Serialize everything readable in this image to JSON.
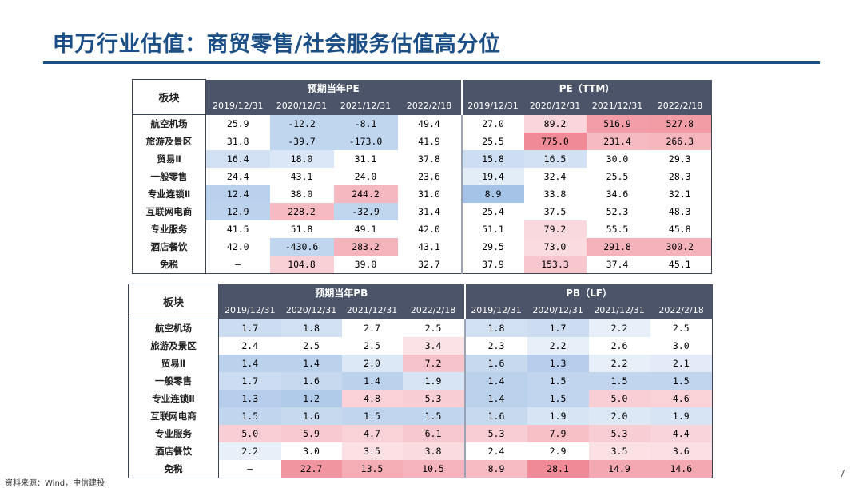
{
  "title": "申万行业估值：商贸零售/社会服务估值高分位",
  "source": "资料来源：Wind，中信建投",
  "page_number": "7",
  "colors": {
    "title": "#1c4f86",
    "header_bg": "#4b5468",
    "high": "#f08a96",
    "low": "#6f9fd6"
  },
  "pe_table": {
    "corner": "板块",
    "group_left": "预期当年PE",
    "group_right": "PE（TTM）",
    "dates": [
      "2019/12/31",
      "2020/12/31",
      "2021/12/31",
      "2022/2/18",
      "2019/12/31",
      "2020/12/31",
      "2021/12/31",
      "2022/2/18"
    ],
    "rows": [
      {
        "sector": "航空机场",
        "cells": [
          "25.9",
          "-12.2",
          "-8.1",
          "49.4",
          "27.0",
          "89.2",
          "516.9",
          "527.8"
        ]
      },
      {
        "sector": "旅游及景区",
        "cells": [
          "31.8",
          "-39.7",
          "-173.0",
          "41.9",
          "25.5",
          "775.0",
          "231.4",
          "266.3"
        ]
      },
      {
        "sector": "贸易Ⅱ",
        "cells": [
          "16.4",
          "18.0",
          "31.1",
          "37.8",
          "15.8",
          "16.5",
          "30.0",
          "29.3"
        ]
      },
      {
        "sector": "一般零售",
        "cells": [
          "24.4",
          "43.1",
          "24.0",
          "23.6",
          "19.4",
          "32.4",
          "25.5",
          "28.3"
        ]
      },
      {
        "sector": "专业连锁Ⅱ",
        "cells": [
          "12.4",
          "38.0",
          "244.2",
          "31.0",
          "8.9",
          "33.8",
          "34.6",
          "32.1"
        ]
      },
      {
        "sector": "互联网电商",
        "cells": [
          "12.9",
          "228.2",
          "-32.9",
          "31.4",
          "25.4",
          "37.5",
          "52.3",
          "48.3"
        ]
      },
      {
        "sector": "专业服务",
        "cells": [
          "41.5",
          "51.8",
          "49.1",
          "42.0",
          "51.1",
          "79.2",
          "55.5",
          "45.8"
        ]
      },
      {
        "sector": "酒店餐饮",
        "cells": [
          "42.0",
          "-430.6",
          "283.2",
          "43.1",
          "29.5",
          "73.0",
          "291.8",
          "300.2"
        ]
      },
      {
        "sector": "免税",
        "cells": [
          "–",
          "104.8",
          "39.0",
          "32.7",
          "37.9",
          "153.3",
          "37.4",
          "45.1"
        ]
      }
    ]
  },
  "pb_table": {
    "corner": "板块",
    "group_left": "预期当年PB",
    "group_right": "PB（LF）",
    "dates": [
      "2019/12/31",
      "2020/12/31",
      "2021/12/31",
      "2022/2/18",
      "2019/12/31",
      "2020/12/31",
      "2021/12/31",
      "2022/2/18"
    ],
    "rows": [
      {
        "sector": "航空机场",
        "cells": [
          "1.7",
          "1.8",
          "2.7",
          "2.5",
          "1.8",
          "1.7",
          "2.2",
          "2.5"
        ]
      },
      {
        "sector": "旅游及景区",
        "cells": [
          "2.4",
          "2.5",
          "2.5",
          "3.4",
          "2.3",
          "2.2",
          "2.6",
          "3.0"
        ]
      },
      {
        "sector": "贸易Ⅱ",
        "cells": [
          "1.4",
          "1.4",
          "2.0",
          "7.2",
          "1.6",
          "1.3",
          "2.2",
          "2.1"
        ]
      },
      {
        "sector": "一般零售",
        "cells": [
          "1.7",
          "1.6",
          "1.4",
          "1.9",
          "1.4",
          "1.5",
          "1.5",
          "1.5"
        ]
      },
      {
        "sector": "专业连锁Ⅱ",
        "cells": [
          "1.3",
          "1.2",
          "4.8",
          "5.3",
          "1.4",
          "1.5",
          "5.0",
          "4.6"
        ]
      },
      {
        "sector": "互联网电商",
        "cells": [
          "1.5",
          "1.6",
          "1.5",
          "1.5",
          "1.6",
          "1.9",
          "2.0",
          "1.9"
        ]
      },
      {
        "sector": "专业服务",
        "cells": [
          "5.0",
          "5.9",
          "4.7",
          "6.1",
          "5.3",
          "7.9",
          "5.3",
          "4.4"
        ]
      },
      {
        "sector": "酒店餐饮",
        "cells": [
          "2.2",
          "3.0",
          "3.5",
          "3.8",
          "2.4",
          "2.9",
          "3.5",
          "3.6"
        ]
      },
      {
        "sector": "免税",
        "cells": [
          "–",
          "22.7",
          "13.5",
          "10.5",
          "8.9",
          "28.1",
          "14.9",
          "14.6"
        ]
      }
    ]
  }
}
